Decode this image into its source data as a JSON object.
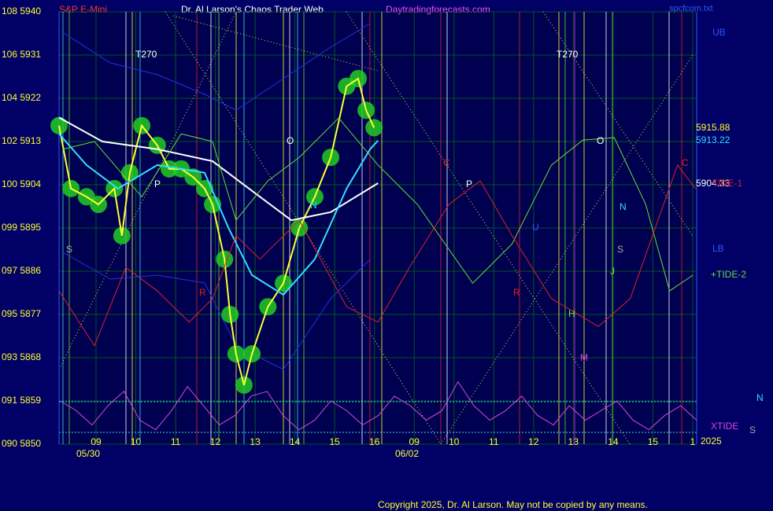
{
  "chart_data": {
    "type": "line",
    "title": "Dr. Al Larson's Chaos Trader Web",
    "subtitle": "S&P E-Mini",
    "site": "Daytradingforecasts.com",
    "file": "spcfcom.txt",
    "copyright": "Copyright 2025, Dr. Al Larson. May not be copied by any means.",
    "year": "2025",
    "dates": [
      "05/30",
      "06/02"
    ],
    "xlim": [
      0.07,
      16.1
    ],
    "xticks": [
      {
        "value": 1,
        "label": "09"
      },
      {
        "value": 2,
        "label": "10"
      },
      {
        "value": 3,
        "label": "11"
      },
      {
        "value": 4,
        "label": "12"
      },
      {
        "value": 5,
        "label": "13"
      },
      {
        "value": 6,
        "label": "14"
      },
      {
        "value": 7,
        "label": "15"
      },
      {
        "value": 8,
        "label": "16"
      },
      {
        "value": 9,
        "label": "09"
      },
      {
        "value": 10,
        "label": "10"
      },
      {
        "value": 11,
        "label": "11"
      },
      {
        "value": 12,
        "label": "12"
      },
      {
        "value": 13,
        "label": "13"
      },
      {
        "value": 14,
        "label": "14"
      },
      {
        "value": 15,
        "label": "15"
      },
      {
        "value": 16,
        "label": "1"
      }
    ],
    "ylim": [
      5850,
      5940
    ],
    "yticks": [
      {
        "value": 5940,
        "label": "108 5940"
      },
      {
        "value": 5931,
        "label": "106 5931"
      },
      {
        "value": 5922,
        "label": "104 5922"
      },
      {
        "value": 5913,
        "label": "102 5913"
      },
      {
        "value": 5904,
        "label": "100 5904"
      },
      {
        "value": 5895,
        "label": "099 5895"
      },
      {
        "value": 5886,
        "label": "097 5886"
      },
      {
        "value": 5877,
        "label": "095 5877"
      },
      {
        "value": 5868,
        "label": "093 5868"
      },
      {
        "value": 5859,
        "label": "091 5859"
      },
      {
        "value": 5850,
        "label": "090 5850"
      }
    ],
    "grid": true,
    "series": [
      {
        "color": "#ffff33",
        "x": [
          0.07,
          0.37,
          0.76,
          1.06,
          1.46,
          1.65,
          1.85,
          2.15,
          2.54,
          2.84,
          3.14,
          3.44,
          3.73,
          3.93,
          4.23,
          4.37,
          4.52,
          4.72,
          4.92,
          5.32,
          5.71,
          6.11,
          6.5,
          6.9,
          7.3,
          7.59,
          7.79,
          7.99
        ],
        "values": [
          5916.3,
          5903.2,
          5901.5,
          5899.9,
          5903.2,
          5893.4,
          5906.5,
          5916.3,
          5912.2,
          5907.3,
          5907.3,
          5905.6,
          5903.2,
          5899.9,
          5888.5,
          5877.0,
          5868.8,
          5862.3,
          5868.8,
          5878.6,
          5883.5,
          5895.0,
          5901.5,
          5909.7,
          5924.5,
          5926.1,
          5919.5,
          5915.88
        ]
      },
      {
        "color": "#ffffff",
        "x": [
          0.07,
          1.16,
          2.54,
          3.93,
          5.12,
          5.91,
          6.9,
          8.09
        ],
        "values": [
          5918.0,
          5913.0,
          5911.4,
          5908.9,
          5901.5,
          5896.6,
          5898.3,
          5904.33
        ]
      },
      {
        "color": "#33ddff",
        "x": [
          0.07,
          0.76,
          1.55,
          2.54,
          3.73,
          4.33,
          4.92,
          5.71,
          6.5,
          7.3,
          7.89,
          8.09
        ],
        "values": [
          5914.6,
          5908.1,
          5903.2,
          5908.1,
          5906.5,
          5895.0,
          5885.2,
          5881.1,
          5888.5,
          5903.2,
          5911.4,
          5913.22
        ]
      },
      {
        "name": "+TIDE-2",
        "color": "#66dd33",
        "x": [
          0.17,
          0.96,
          2.15,
          3.14,
          3.93,
          4.52,
          5.32,
          6.11,
          7.1,
          8.09,
          9.08,
          10.47,
          11.46,
          12.45,
          13.24,
          14.03,
          14.82,
          15.42,
          16.01
        ],
        "values": [
          5911.4,
          5913.0,
          5901.5,
          5914.6,
          5913.0,
          5896.6,
          5904.8,
          5909.7,
          5917.9,
          5908.1,
          5899.9,
          5883.5,
          5891.7,
          5908.1,
          5913.3,
          5913.8,
          5899.9,
          5881.9,
          5885.2
        ]
      },
      {
        "name": "TIDE-1",
        "color": "#dd2222",
        "x": [
          0.07,
          0.96,
          1.75,
          2.54,
          3.34,
          3.93,
          4.52,
          5.12,
          6.11,
          7.3,
          8.09,
          8.88,
          9.87,
          10.66,
          11.46,
          12.45,
          13.63,
          14.43,
          15.62,
          16.07
        ],
        "values": [
          5881.9,
          5870.5,
          5886.8,
          5881.9,
          5875.4,
          5880.3,
          5893.4,
          5888.5,
          5896.6,
          5878.6,
          5875.4,
          5886.8,
          5899.9,
          5904.8,
          5893.4,
          5880.3,
          5874.5,
          5880.3,
          5908.1,
          5903.2
        ]
      },
      {
        "name": "XTIDE",
        "color": "#dd44dd",
        "x": [
          0.1,
          0.5,
          0.9,
          1.3,
          1.7,
          2.1,
          2.5,
          2.9,
          3.3,
          3.7,
          4.1,
          4.5,
          4.9,
          5.3,
          5.7,
          6.1,
          6.5,
          6.9,
          7.3,
          7.7,
          8.1,
          8.5,
          8.9,
          9.3,
          9.7,
          10.1,
          10.5,
          10.9,
          11.3,
          11.7,
          12.1,
          12.5,
          12.9,
          13.3,
          13.7,
          14.1,
          14.5,
          14.9,
          15.3,
          15.7,
          16.1
        ],
        "values": [
          5859,
          5857,
          5854,
          5858,
          5861,
          5855,
          5853,
          5857,
          5862,
          5858,
          5854,
          5856,
          5860,
          5861,
          5856,
          5853,
          5855,
          5859,
          5857,
          5854,
          5856,
          5860,
          5858,
          5855,
          5857,
          5863,
          5858,
          5855,
          5857,
          5860,
          5856,
          5854,
          5858,
          5855,
          5857,
          5859,
          5855,
          5853,
          5856,
          5858,
          5855
        ]
      }
    ],
    "bands": [
      "UB",
      "LB"
    ],
    "poles": [
      "N",
      "S"
    ],
    "annotations": [
      {
        "text": "T270",
        "color": "#ffffff"
      },
      {
        "text": "T270",
        "color": "#ffffff"
      },
      {
        "text": "O",
        "color": "#ffffff"
      },
      {
        "text": "O",
        "color": "#ffffff"
      },
      {
        "text": "P",
        "color": "#ffffff"
      },
      {
        "text": "P",
        "color": "#ffffff"
      },
      {
        "text": "C",
        "color": "#dd2222"
      },
      {
        "text": "C",
        "color": "#dd2222"
      },
      {
        "text": "R",
        "color": "#dd2222"
      },
      {
        "text": "R",
        "color": "#dd2222"
      },
      {
        "text": "S",
        "color": "#aaaaaa"
      },
      {
        "text": "S",
        "color": "#aaaaaa"
      },
      {
        "text": "N",
        "color": "#33ddff"
      },
      {
        "text": "N",
        "color": "#33ddff"
      },
      {
        "text": "U",
        "color": "#3355ff"
      },
      {
        "text": "H",
        "color": "#66dd33"
      },
      {
        "text": "M",
        "color": "#dd44dd"
      },
      {
        "text": "J",
        "color": "#66dd33"
      }
    ]
  }
}
